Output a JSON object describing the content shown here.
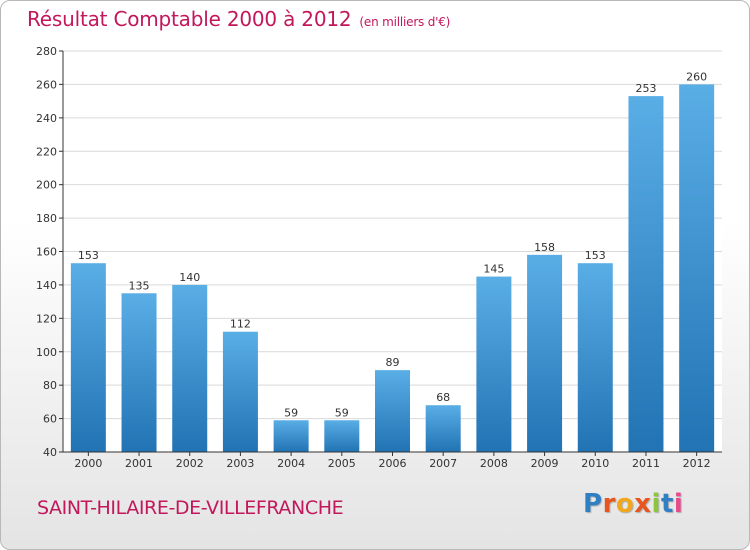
{
  "title": "Résultat Comptable 2000 à 2012",
  "subtitle": "(en milliers d'€)",
  "location": "SAINT-HILAIRE-DE-VILLEFRANCHE",
  "brand": {
    "letters": [
      "P",
      "r",
      "o",
      "x",
      "i",
      "t",
      "i"
    ],
    "colors": [
      "#2e7fc4",
      "#e8561f",
      "#f2a81d",
      "#e8561f",
      "#8cc63f",
      "#2e7fc4",
      "#e84a8a"
    ]
  },
  "colors": {
    "accent": "#c2185b",
    "bar_top": "#5aaee6",
    "bar_bottom": "#2173b3",
    "axis": "#333333",
    "grid": "#d9d9d9"
  },
  "chart_data": {
    "type": "bar",
    "categories": [
      "2000",
      "2001",
      "2002",
      "2003",
      "2004",
      "2005",
      "2006",
      "2007",
      "2008",
      "2009",
      "2010",
      "2011",
      "2012"
    ],
    "values": [
      153,
      135,
      140,
      112,
      59,
      59,
      89,
      68,
      145,
      158,
      153,
      253,
      260
    ],
    "ylim": [
      40,
      280
    ],
    "yticks": [
      40,
      60,
      80,
      100,
      120,
      140,
      160,
      180,
      200,
      220,
      240,
      260,
      280
    ],
    "grid": true,
    "data_labels": true
  }
}
